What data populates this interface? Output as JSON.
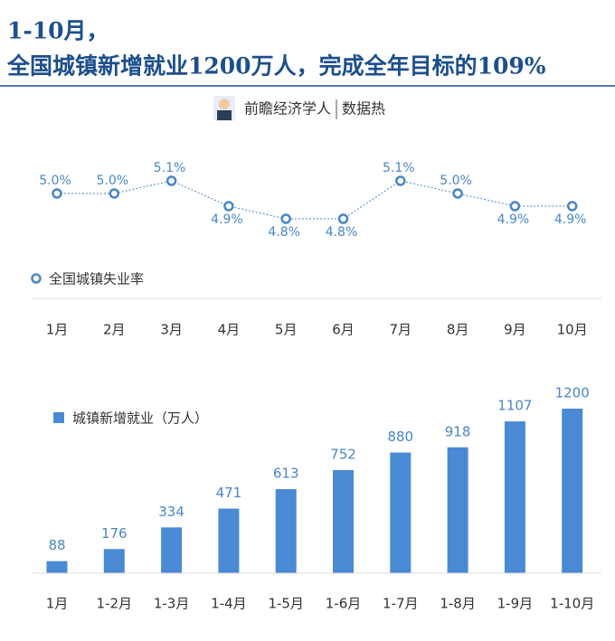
{
  "header": {
    "title_line1": "1-10月，",
    "title_line2": "全国城镇新增就业1200万人，完成全年目标的109%",
    "brand": "前瞻经济学人",
    "brand_tag": "数据热"
  },
  "chart_data": [
    {
      "type": "line",
      "categories": [
        "1月",
        "2月",
        "3月",
        "4月",
        "5月",
        "6月",
        "7月",
        "8月",
        "9月",
        "10月"
      ],
      "series": [
        {
          "name": "全国城镇失业率",
          "color": "#4a86c8",
          "values": [
            5.0,
            5.0,
            5.1,
            4.9,
            4.8,
            4.8,
            5.1,
            5.0,
            4.9,
            4.9
          ],
          "value_labels": [
            "5.0%",
            "5.0%",
            "5.1%",
            "4.9%",
            "4.8%",
            "4.8%",
            "5.1%",
            "5.0%",
            "4.9%",
            "4.9%"
          ]
        }
      ]
    },
    {
      "type": "bar",
      "categories": [
        "1月",
        "1-2月",
        "1-3月",
        "1-4月",
        "1-5月",
        "1-6月",
        "1-7月",
        "1-8月",
        "1-9月",
        "1-10月"
      ],
      "series": [
        {
          "name": "城镇新增就业（万人）",
          "color": "#4a8ad4",
          "values": [
            88,
            176,
            334,
            471,
            613,
            752,
            880,
            918,
            1107,
            1200
          ]
        }
      ]
    }
  ]
}
